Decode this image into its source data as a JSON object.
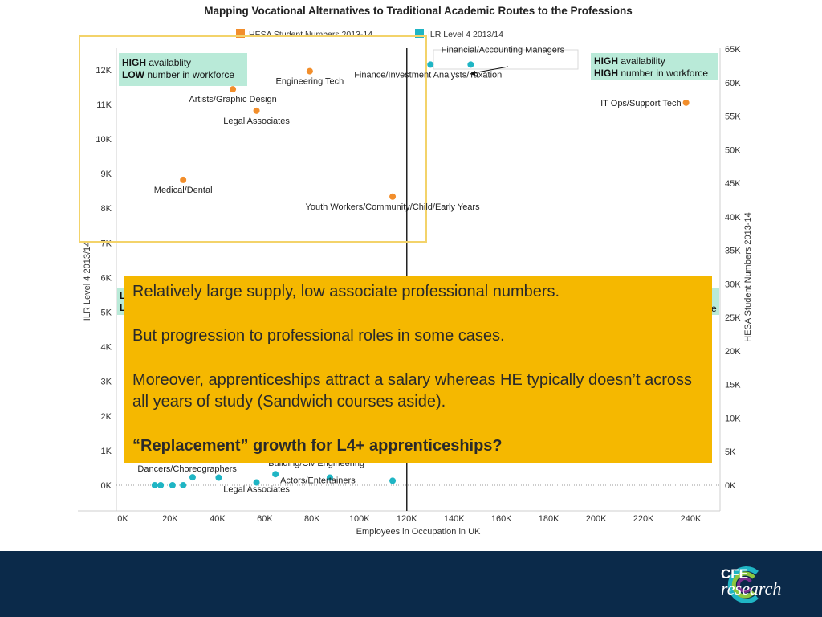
{
  "chart_data": {
    "type": "scatter",
    "title": "Mapping Vocational Alternatives to Traditional Academic Routes to the Professions",
    "xlabel": "Employees in Occupation in UK",
    "ylabel_left": "ILR Level 4 2013/14",
    "ylabel_right": "HESA Student Numbers 2013-14",
    "x_ticks": [
      "0K",
      "20K",
      "40K",
      "60K",
      "80K",
      "100K",
      "120K",
      "140K",
      "160K",
      "180K",
      "200K",
      "220K",
      "240K"
    ],
    "y_left_ticks": [
      "0K",
      "1K",
      "2K",
      "3K",
      "4K",
      "5K",
      "6K",
      "7K",
      "8K",
      "9K",
      "10K",
      "11K",
      "12K"
    ],
    "y_right_ticks": [
      "0K",
      "5K",
      "10K",
      "15K",
      "20K",
      "25K",
      "30K",
      "35K",
      "40K",
      "45K",
      "50K",
      "55K",
      "60K",
      "65K"
    ],
    "xlim": [
      0,
      250000
    ],
    "ylim_left": [
      0,
      12600
    ],
    "ylim_right": [
      0,
      65000
    ],
    "reference_line_x": 120000,
    "legend": [
      {
        "name": "HESA Student Numbers 2013-14",
        "color": "#f28e2b"
      },
      {
        "name": "ILR Level 4 2013/14",
        "color": "#1fb5c4"
      }
    ],
    "series": [
      {
        "name": "HESA Student Numbers 2013-14",
        "axis": "right",
        "color": "#f28e2b",
        "points": [
          {
            "x": 79000,
            "y": 61700,
            "label": "Engineering Tech"
          },
          {
            "x": 46500,
            "y": 59000,
            "label": "Artists/Graphic Design"
          },
          {
            "x": 56500,
            "y": 55800,
            "label": "Legal Associates"
          },
          {
            "x": 25500,
            "y": 45500,
            "label": "Medical/Dental"
          },
          {
            "x": 114000,
            "y": 43000,
            "label": "Youth Workers/Community/Child/Early Years"
          },
          {
            "x": 238000,
            "y": 57000,
            "label": "IT Ops/Support Tech"
          }
        ]
      },
      {
        "name": "ILR Level 4 2013/14",
        "axis": "left",
        "color": "#1fb5c4",
        "points": [
          {
            "x": 130000,
            "y": 12150,
            "label": "Finance/Investment Analysts/Taxation"
          },
          {
            "x": 147000,
            "y": 12150,
            "label": "Financial/Accounting Managers"
          },
          {
            "x": 13500,
            "y": 0,
            "label": ""
          },
          {
            "x": 16000,
            "y": 0,
            "label": "Dancers/Choreographers"
          },
          {
            "x": 21000,
            "y": 0,
            "label": ""
          },
          {
            "x": 25500,
            "y": 0,
            "label": ""
          },
          {
            "x": 29500,
            "y": 230,
            "label": ""
          },
          {
            "x": 40500,
            "y": 220,
            "label": ""
          },
          {
            "x": 56500,
            "y": 80,
            "label": "Legal Associates"
          },
          {
            "x": 64500,
            "y": 320,
            "label": "Building/Civ Engineering"
          },
          {
            "x": 87500,
            "y": 220,
            "label": "Actors/Entertainers"
          },
          {
            "x": 114000,
            "y": 130,
            "label": ""
          }
        ]
      }
    ],
    "quadrants": [
      {
        "line1_bold": "HIGH",
        "line1_rest": " availablity",
        "line2_bold": "LOW",
        "line2_rest": " number in workforce"
      },
      {
        "line1_bold": "HIGH",
        "line1_rest": " availability",
        "line2_bold": "HIGH",
        "line2_rest": " number in workforce"
      }
    ],
    "hidden_quadrant_fragments": [
      "L",
      "L",
      "e"
    ]
  },
  "callout": {
    "line1": "Relatively large supply, low associate professional numbers.",
    "line2": "But progression to professional roles in some cases.",
    "line3": "Moreover, apprenticeships attract a salary whereas HE typically doesn’t across all years of study (Sandwich courses aside).",
    "line4": "“Replacement” growth for L4+ apprenticeships?"
  },
  "logo": {
    "top": "CFE",
    "bottom": "research"
  },
  "colors": {
    "footer": "#0b2a4a",
    "callout": "#f5b800",
    "quadrant_box": "#b9ead8",
    "highlight_border": "#f3d36a"
  }
}
